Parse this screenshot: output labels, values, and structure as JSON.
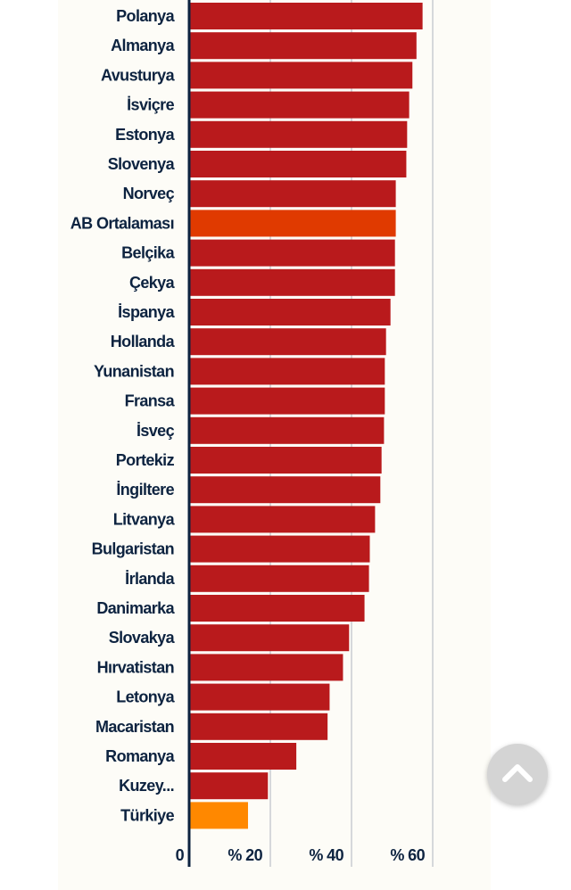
{
  "chart_data": {
    "type": "bar",
    "orientation": "horizontal",
    "categories": [
      "Polanya",
      "Almanya",
      "Avusturya",
      "İsviçre",
      "Estonya",
      "Slovenya",
      "Norveç",
      "AB Ortalaması",
      "Belçika",
      "Çekya",
      "İspanya",
      "Hollanda",
      "Yunanistan",
      "Fransa",
      "İsveç",
      "Portekiz",
      "İngiltere",
      "Litvanya",
      "Bulgaristan",
      "İrlanda",
      "Danimarka",
      "Slovakya",
      "Hırvatistan",
      "Letonya",
      "Macaristan",
      "Romanya",
      "Kuzey...",
      "Türkiye"
    ],
    "values": [
      57.5,
      56,
      55,
      54.2,
      53.7,
      53.5,
      50.9,
      50.9,
      50.7,
      50.7,
      49.6,
      48.5,
      48.2,
      48.2,
      48,
      47.4,
      47.1,
      45.8,
      44.5,
      44.3,
      43.2,
      39.4,
      37.9,
      34.6,
      34.1,
      26.4,
      19.4,
      14.5
    ],
    "highlight": {
      "AB Ortalaması": "#e03a00",
      "Türkiye": "#ff8800"
    },
    "bar_color": "#b91a1c",
    "xlim": [
      0,
      70
    ],
    "ticks": [
      {
        "value": 0,
        "label": "0"
      },
      {
        "value": 20,
        "label": "% 20"
      },
      {
        "value": 40,
        "label": "% 40"
      },
      {
        "value": 60,
        "label": "% 60"
      }
    ],
    "grid": true,
    "title": "",
    "xlabel": "",
    "ylabel": ""
  },
  "scroll_top_button": {
    "icon": "chevron-up-icon"
  }
}
